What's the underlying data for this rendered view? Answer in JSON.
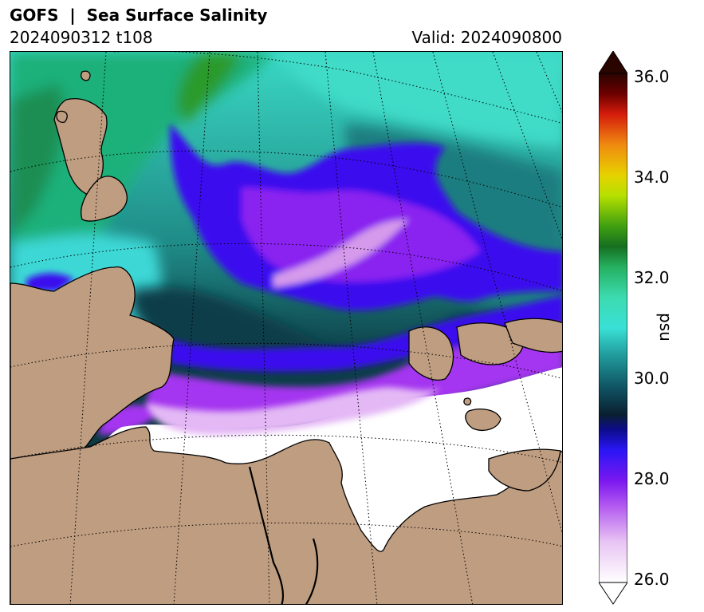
{
  "header": {
    "title": "GOFS  |  Sea Surface Salinity",
    "run": "2024090312 t108",
    "valid": "Valid: 2024090800"
  },
  "map": {
    "type": "polar-stereographic",
    "region": "Barents and Kara Seas",
    "gridlines": "dotted",
    "land_color": "#bf9d81",
    "ice_color": "#ffffff",
    "variable": "sea surface salinity"
  },
  "colorbar": {
    "label": "psu",
    "min": 26.0,
    "max": 36.0,
    "ticks": [
      "36.0",
      "34.0",
      "32.0",
      "30.0",
      "28.0",
      "26.0"
    ],
    "extend": "both",
    "orientation": "vertical"
  }
}
